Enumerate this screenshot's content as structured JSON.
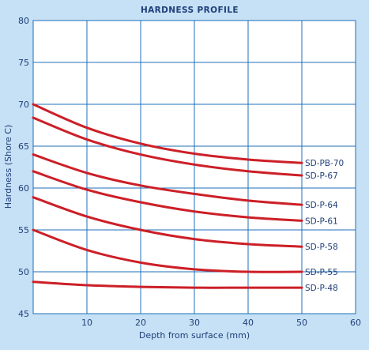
{
  "chart_data": {
    "type": "line",
    "title": "HARDNESS PROFILE",
    "xlabel": "Depth from surface (mm)",
    "ylabel": "Hardness (Shore C)",
    "xlim": [
      0,
      60
    ],
    "ylim": [
      45,
      80
    ],
    "xticks": [
      "10",
      "20",
      "30",
      "40",
      "50",
      "60"
    ],
    "yticks": [
      "45",
      "50",
      "55",
      "60",
      "65",
      "70",
      "75",
      "80"
    ],
    "grid": true,
    "colors": {
      "background": "#c6e0f5",
      "plot_area": "#ffffff",
      "grid": "#1f6fb8",
      "series": "#cc1f27",
      "text": "#1f3f79"
    },
    "series": [
      {
        "name": "SD-PB-70",
        "x": [
          0,
          10,
          20,
          30,
          40,
          50
        ],
        "y": [
          70.0,
          67.2,
          65.3,
          64.1,
          63.4,
          63.0
        ]
      },
      {
        "name": "SD-P-67",
        "x": [
          0,
          10,
          20,
          30,
          40,
          50
        ],
        "y": [
          68.4,
          65.8,
          64.0,
          62.8,
          62.0,
          61.5
        ]
      },
      {
        "name": "SD-P-64",
        "x": [
          0,
          10,
          20,
          30,
          40,
          50
        ],
        "y": [
          64.0,
          61.8,
          60.3,
          59.3,
          58.5,
          58.0
        ]
      },
      {
        "name": "SD-P-61",
        "x": [
          0,
          10,
          20,
          30,
          40,
          50
        ],
        "y": [
          62.0,
          59.8,
          58.3,
          57.2,
          56.5,
          56.1
        ]
      },
      {
        "name": "SD-P-58",
        "x": [
          0,
          10,
          20,
          30,
          40,
          50
        ],
        "y": [
          58.9,
          56.6,
          55.0,
          53.9,
          53.3,
          53.0
        ]
      },
      {
        "name": "SD-P-55",
        "x": [
          0,
          10,
          20,
          30,
          40,
          50
        ],
        "y": [
          55.0,
          52.6,
          51.1,
          50.3,
          50.0,
          50.0
        ]
      },
      {
        "name": "SD-P-48",
        "x": [
          0,
          10,
          20,
          30,
          40,
          50
        ],
        "y": [
          48.8,
          48.4,
          48.2,
          48.1,
          48.1,
          48.1
        ]
      }
    ]
  }
}
